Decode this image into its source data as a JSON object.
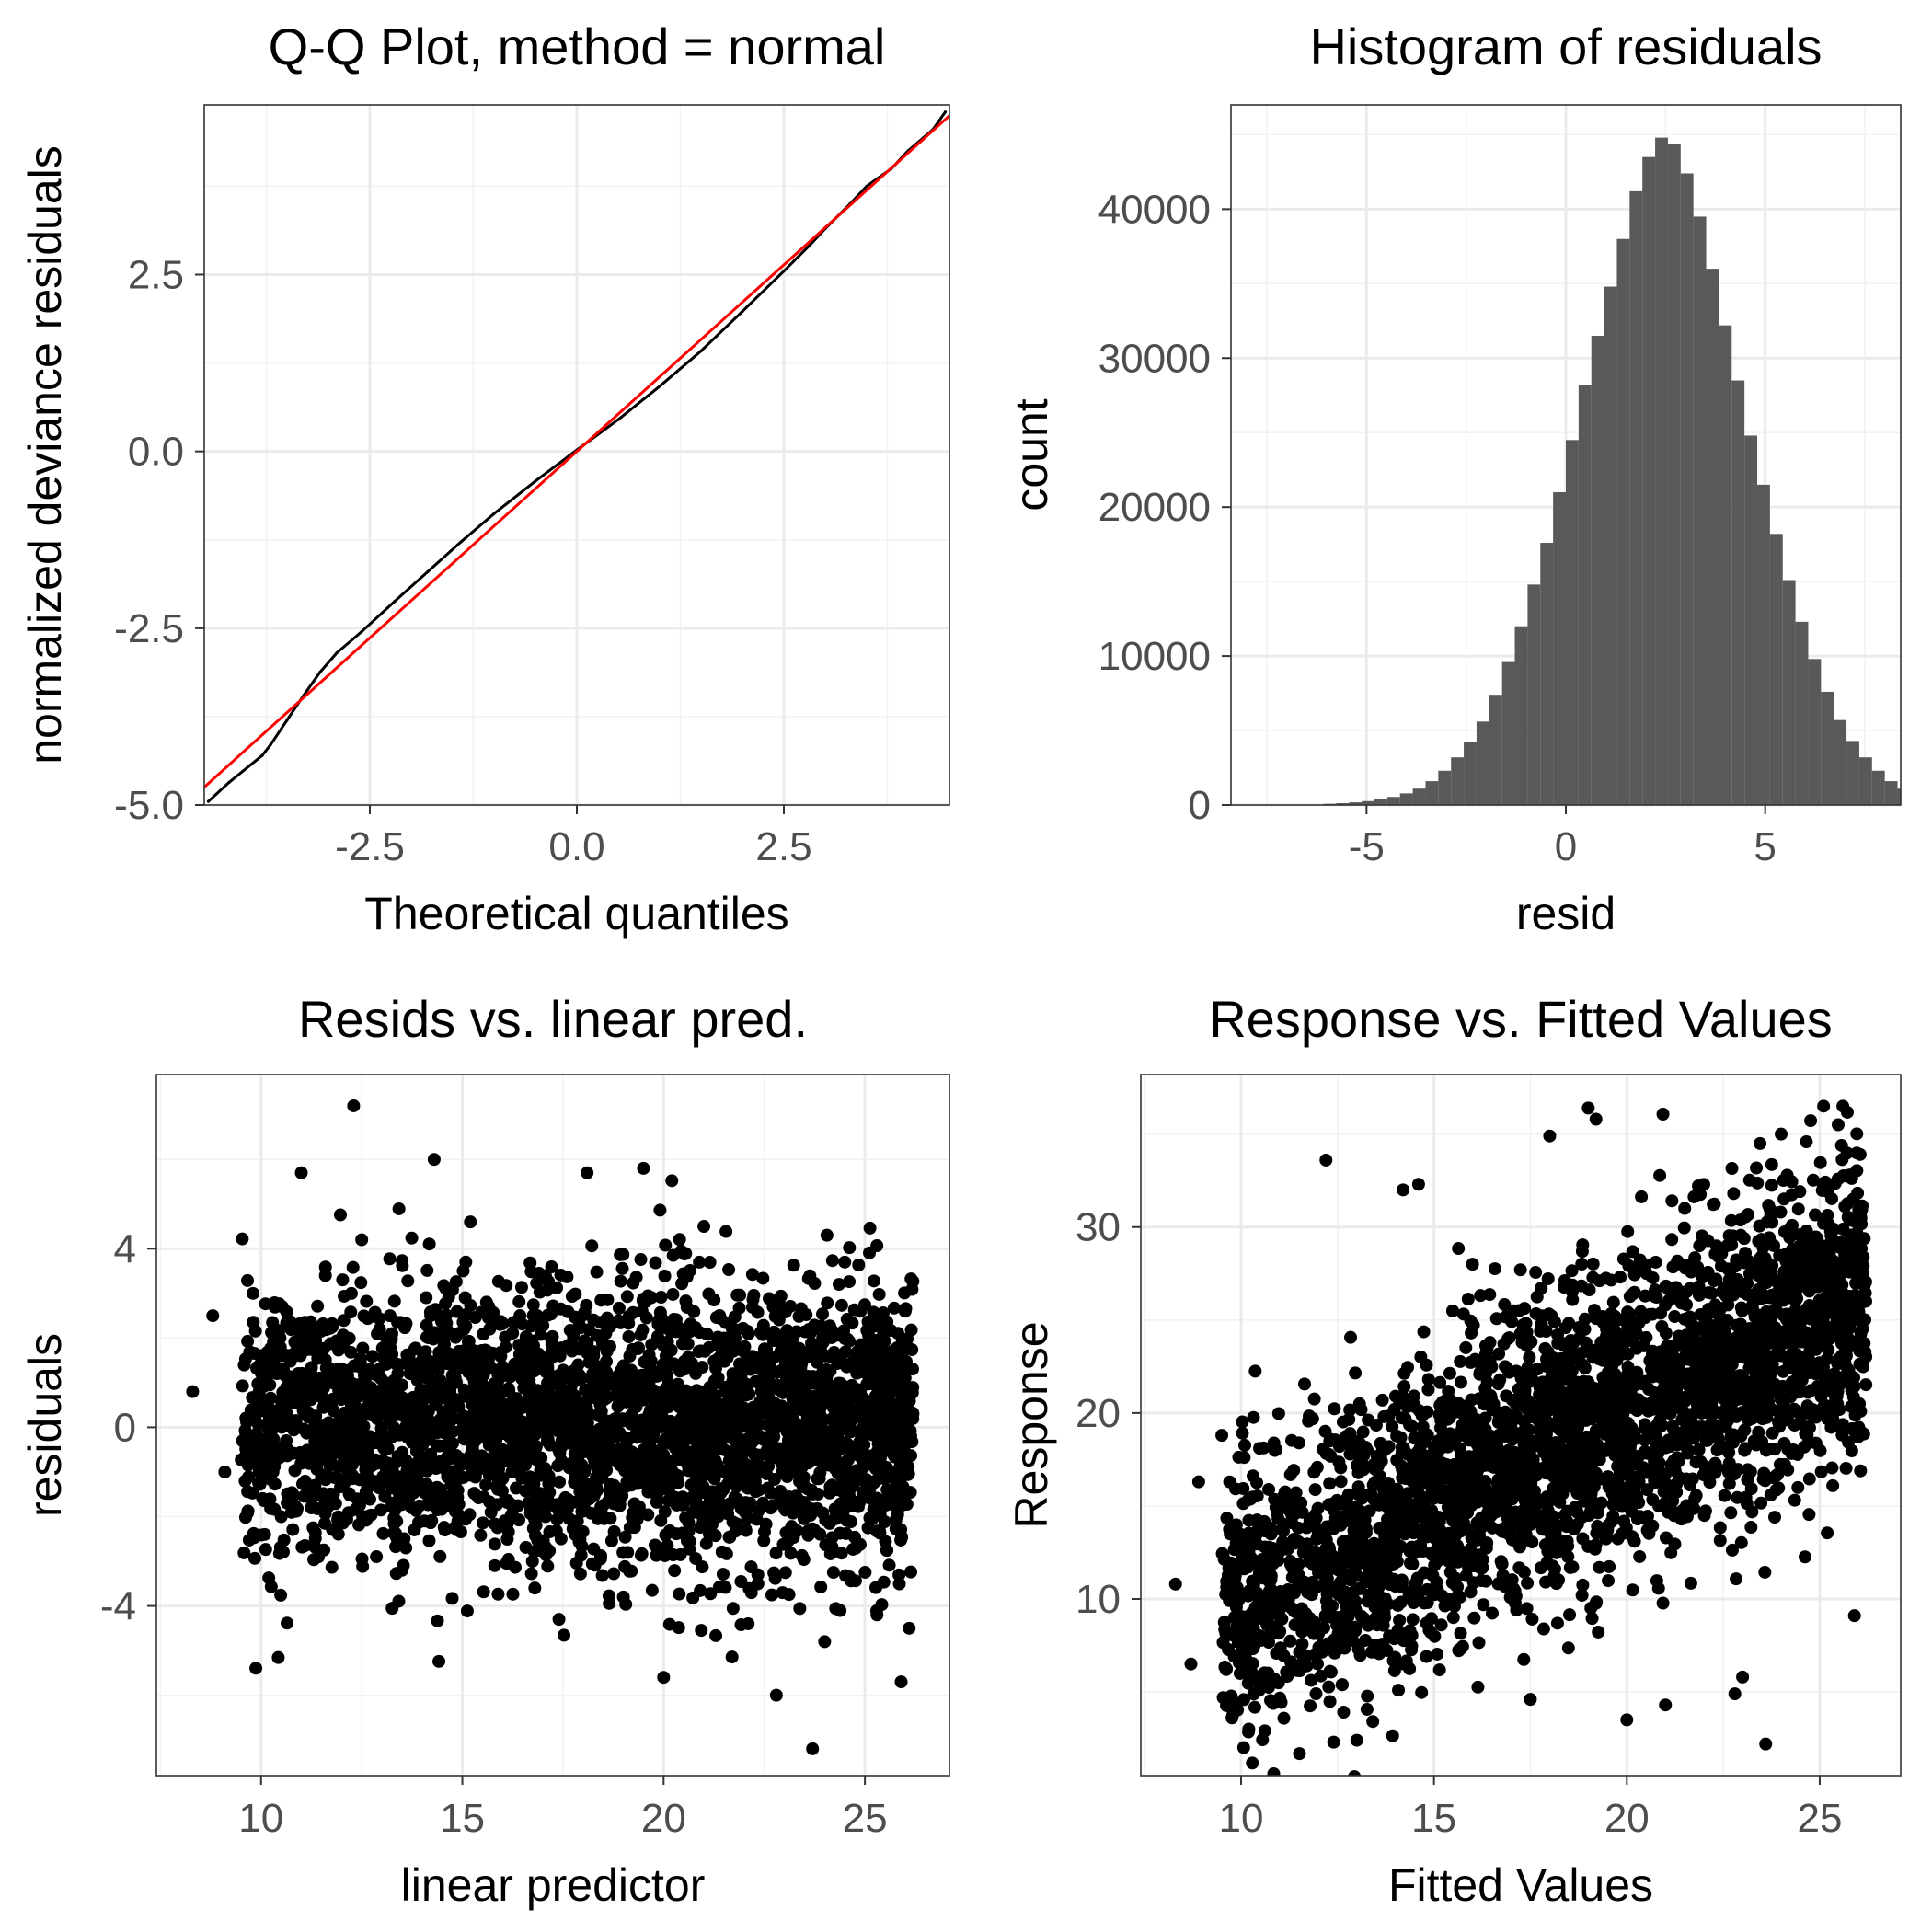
{
  "chart_data": [
    {
      "type": "scatter",
      "title": "Q-Q Plot, method = normal",
      "xlabel": "Theoretical quantiles",
      "ylabel": "normalized deviance residuals",
      "xlim": [
        -4.5,
        4.5
      ],
      "ylim": [
        -5.0,
        4.9
      ],
      "xticks": [
        -2.5,
        0.0,
        2.5
      ],
      "xtick_labels": [
        "-2.5",
        "0.0",
        "2.5"
      ],
      "yticks": [
        -5.0,
        -2.5,
        0.0,
        2.5
      ],
      "ytick_labels": [
        "-5.0",
        "-2.5",
        "0.0",
        "2.5"
      ],
      "grid": true,
      "points": [
        [
          -4.45,
          -4.95
        ],
        [
          -4.2,
          -4.68
        ],
        [
          -3.8,
          -4.3
        ],
        [
          -3.7,
          -4.15
        ],
        [
          -3.5,
          -3.8
        ],
        [
          -3.3,
          -3.45
        ],
        [
          -3.1,
          -3.12
        ],
        [
          -2.9,
          -2.85
        ],
        [
          -2.6,
          -2.55
        ],
        [
          -2.2,
          -2.12
        ],
        [
          -1.8,
          -1.7
        ],
        [
          -1.4,
          -1.28
        ],
        [
          -1.0,
          -0.88
        ],
        [
          -0.5,
          -0.42
        ],
        [
          0.0,
          0.02
        ],
        [
          0.5,
          0.45
        ],
        [
          1.0,
          0.92
        ],
        [
          1.5,
          1.42
        ],
        [
          2.0,
          1.98
        ],
        [
          2.5,
          2.55
        ],
        [
          2.8,
          2.9
        ],
        [
          3.0,
          3.15
        ],
        [
          3.3,
          3.5
        ],
        [
          3.5,
          3.75
        ],
        [
          3.8,
          4.0
        ],
        [
          4.0,
          4.25
        ],
        [
          4.3,
          4.55
        ],
        [
          4.45,
          4.8
        ]
      ],
      "reference_line": {
        "slope": 1.055,
        "intercept": 0.0,
        "color": "#ff0000"
      }
    },
    {
      "type": "bar",
      "title": "Histogram of residuals",
      "xlabel": "resid",
      "ylabel": "count",
      "xlim": [
        -8.4,
        8.4
      ],
      "ylim": [
        0,
        47000
      ],
      "xticks": [
        -5,
        0,
        5
      ],
      "xtick_labels": [
        "-5",
        "0",
        "5"
      ],
      "yticks": [
        0,
        10000,
        20000,
        30000,
        40000
      ],
      "ytick_labels": [
        "0",
        "10000",
        "20000",
        "30000",
        "40000"
      ],
      "grid": true,
      "bar_color": "#595959",
      "bin_width": 0.32,
      "bin_start": -6.08,
      "values": [
        80,
        120,
        180,
        260,
        380,
        540,
        780,
        1100,
        1600,
        2300,
        3200,
        4200,
        5600,
        7400,
        9600,
        12000,
        14800,
        17600,
        21000,
        24500,
        28200,
        31500,
        34800,
        38000,
        41200,
        43500,
        44800,
        44400,
        42400,
        39500,
        36000,
        32200,
        28500,
        24800,
        21500,
        18200,
        15100,
        12300,
        9800,
        7600,
        5700,
        4300,
        3200,
        2300,
        1600,
        1100,
        780,
        520,
        360,
        240,
        160,
        110,
        70,
        40
      ]
    },
    {
      "type": "scatter",
      "title": "Resids vs. linear pred.",
      "xlabel": "linear predictor",
      "ylabel": "residuals",
      "xlim": [
        7.4,
        27.1
      ],
      "ylim": [
        -7.8,
        7.9
      ],
      "xticks": [
        10,
        15,
        20,
        25
      ],
      "xtick_labels": [
        "10",
        "15",
        "20",
        "25"
      ],
      "yticks": [
        -4,
        0,
        4
      ],
      "ytick_labels": [
        "-4",
        "0",
        "4"
      ],
      "grid": true,
      "points": [
        [
          8.3,
          0.8
        ],
        [
          8.8,
          2.5
        ],
        [
          9.1,
          -1.0
        ],
        [
          9.8,
          3.0
        ],
        [
          10.5,
          -2.0
        ],
        [
          11.0,
          5.7
        ],
        [
          12.3,
          7.2
        ],
        [
          14.3,
          6.0
        ],
        [
          18.1,
          5.7
        ],
        [
          19.5,
          5.8
        ],
        [
          20.0,
          -5.6
        ],
        [
          22.8,
          -6.0
        ],
        [
          23.7,
          -7.2
        ],
        [
          25.9,
          -5.7
        ],
        [
          26.0,
          2.6
        ],
        [
          26.1,
          -4.5
        ],
        [
          12.5,
          4.2
        ],
        [
          15.2,
          4.6
        ],
        [
          21.0,
          4.5
        ],
        [
          24.5,
          3.7
        ],
        [
          13.5,
          -3.2
        ],
        [
          16.8,
          -3.6
        ],
        [
          19.0,
          -3.8
        ],
        [
          22.1,
          -4.4
        ],
        [
          17.4,
          -4.3
        ],
        [
          11.8,
          -1.5
        ],
        [
          25.3,
          -4.2
        ],
        [
          24.0,
          -4.8
        ]
      ],
      "density_cloud": {
        "x_range": [
          9.5,
          26.2
        ],
        "y_center": 0,
        "y_spread": 1.55
      }
    },
    {
      "type": "scatter",
      "title": "Response vs. Fitted Values",
      "xlabel": "Fitted Values",
      "ylabel": "Response",
      "xlim": [
        7.4,
        27.1
      ],
      "ylim": [
        0.5,
        38.2
      ],
      "xticks": [
        10,
        15,
        20,
        25
      ],
      "xtick_labels": [
        "10",
        "15",
        "20",
        "25"
      ],
      "yticks": [
        10,
        20,
        30
      ],
      "ytick_labels": [
        "10",
        "20",
        "30"
      ],
      "grid": true,
      "points": [
        [
          8.3,
          10.8
        ],
        [
          8.7,
          6.5
        ],
        [
          8.9,
          16.3
        ],
        [
          9.5,
          18.8
        ],
        [
          10.2,
          3.0
        ],
        [
          12.2,
          33.6
        ],
        [
          14.2,
          32.0
        ],
        [
          14.6,
          32.3
        ],
        [
          18.0,
          34.9
        ],
        [
          19.0,
          36.4
        ],
        [
          19.2,
          35.8
        ],
        [
          20.0,
          3.5
        ],
        [
          22.8,
          4.9
        ],
        [
          23.6,
          2.2
        ],
        [
          25.1,
          36.5
        ],
        [
          25.6,
          36.5
        ],
        [
          25.9,
          9.1
        ],
        [
          13.0,
          2.4
        ],
        [
          12.4,
          2.3
        ],
        [
          17.5,
          4.6
        ],
        [
          21.0,
          4.3
        ],
        [
          23.0,
          5.8
        ],
        [
          16.0,
          28.0
        ],
        [
          21.5,
          31.0
        ],
        [
          24.0,
          35.0
        ]
      ],
      "density_cloud": {
        "x_range": [
          9.5,
          26.2
        ],
        "slope": 1.0,
        "y_spread": 4.0
      }
    }
  ]
}
